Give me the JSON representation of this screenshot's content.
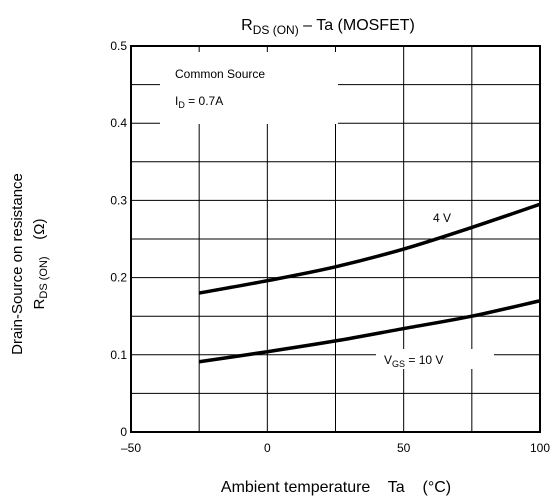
{
  "chart_data": {
    "type": "line",
    "title": {
      "main": "R",
      "sub": "DS (ON)",
      "rest": " – Ta (MOSFET)"
    },
    "xlabel": "Ambient temperature    Ta    (°C)",
    "ylabel": {
      "line1": "Drain-Source on resistance",
      "line2_main": "R",
      "line2_sub": "DS (ON)",
      "line2_unit": "(Ω)"
    },
    "xlim": [
      -50,
      100
    ],
    "ylim": [
      0,
      0.5
    ],
    "x_ticks": [
      -50,
      0,
      50,
      100
    ],
    "x_tick_labels": [
      "–50",
      "0",
      "50",
      "100"
    ],
    "y_ticks": [
      0,
      0.1,
      0.2,
      0.3,
      0.4,
      0.5
    ],
    "y_tick_labels": [
      "0",
      "0.1",
      "0.2",
      "0.3",
      "0.4",
      "0.5"
    ],
    "grid": true,
    "legend_box": {
      "line1": "Common Source",
      "line2_main": "I",
      "line2_sub": "D",
      "line2_rest": " = 0.7A"
    },
    "series": [
      {
        "name": "4 V",
        "x": [
          -25,
          0,
          25,
          50,
          75,
          100
        ],
        "y": [
          0.18,
          0.196,
          0.214,
          0.237,
          0.265,
          0.295
        ]
      },
      {
        "name": "V_GS = 10 V",
        "label_main": "V",
        "label_sub": "GS",
        "label_rest": " = 10 V",
        "x": [
          -25,
          0,
          25,
          50,
          75,
          100
        ],
        "y": [
          0.091,
          0.104,
          0.118,
          0.134,
          0.15,
          0.17
        ]
      }
    ]
  }
}
